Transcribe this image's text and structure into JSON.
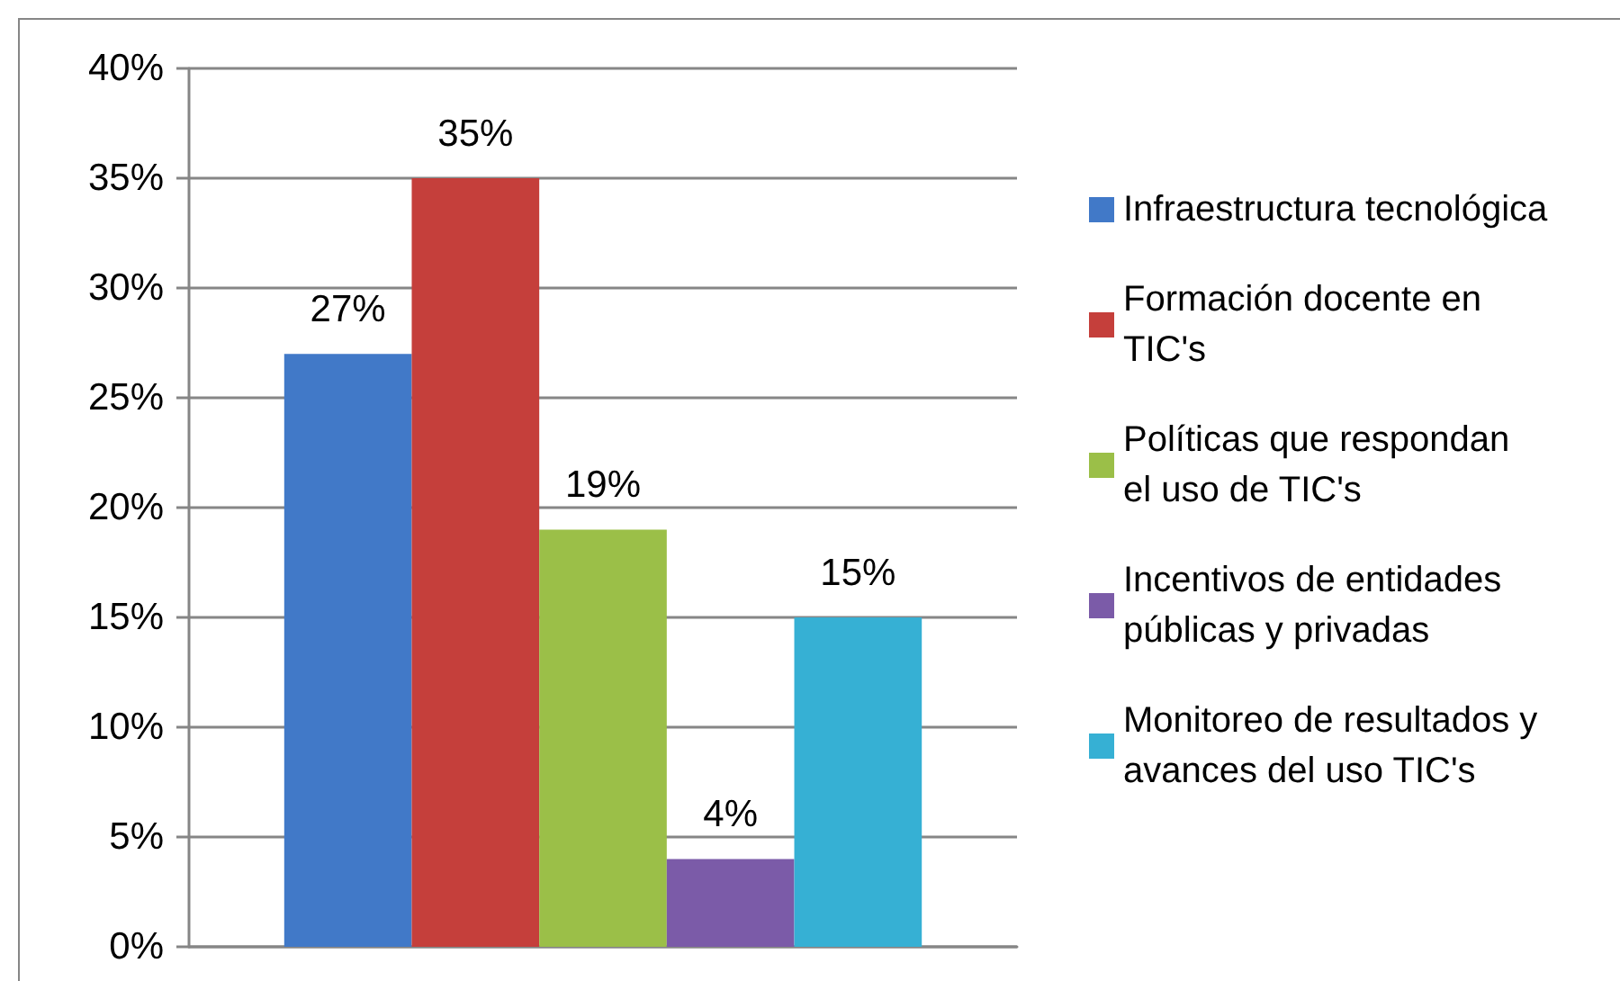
{
  "chart_data": {
    "type": "bar",
    "categories": [
      null
    ],
    "series": [
      {
        "name": "Infraestructura tecnológica",
        "color": "#4179c8",
        "values": [
          27
        ],
        "value_labels": [
          "27%"
        ]
      },
      {
        "name": "Formación docente en TIC's",
        "color": "#c53f3b",
        "values": [
          35
        ],
        "value_labels": [
          "35%"
        ]
      },
      {
        "name": "Políticas que respondan el uso de TIC's",
        "color": "#9bbf48",
        "values": [
          19
        ],
        "value_labels": [
          "19%"
        ]
      },
      {
        "name": "Incentivos de entidades públicas y privadas",
        "color": "#7b5ba8",
        "values": [
          4
        ],
        "value_labels": [
          "4%"
        ]
      },
      {
        "name": "Monitoreo de resultados y avances del uso TIC's",
        "color": "#36b0d4",
        "values": [
          15
        ],
        "value_labels": [
          "15%"
        ]
      }
    ],
    "ylim": [
      0,
      40
    ],
    "yticks": [
      {
        "value": 0,
        "label": "0%"
      },
      {
        "value": 5,
        "label": "5%"
      },
      {
        "value": 10,
        "label": "10%"
      },
      {
        "value": 15,
        "label": "15%"
      },
      {
        "value": 20,
        "label": "20%"
      },
      {
        "value": 25,
        "label": "25%"
      },
      {
        "value": 30,
        "label": "30%"
      },
      {
        "value": 35,
        "label": "35%"
      },
      {
        "value": 40,
        "label": "40%"
      }
    ],
    "grid": "y",
    "legend": "right",
    "tick_labels": "y"
  }
}
